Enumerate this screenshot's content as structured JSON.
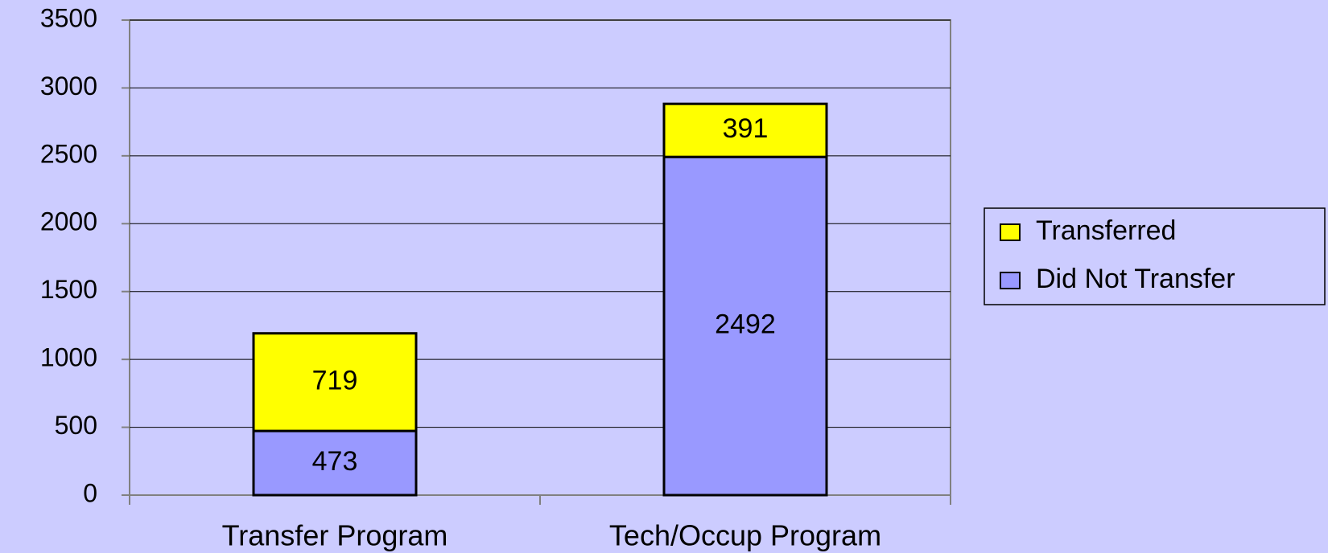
{
  "chart_data": {
    "type": "stacked_bar",
    "categories": [
      "Transfer Program",
      "Tech/Occup Program"
    ],
    "series": [
      {
        "name": "Did Not Transfer",
        "color": "#9999ff",
        "values": [
          473,
          2492
        ]
      },
      {
        "name": "Transferred",
        "color": "#ffff00",
        "values": [
          719,
          391
        ]
      }
    ],
    "ylim": [
      0,
      3500
    ],
    "yticks": [
      0,
      500,
      1000,
      1500,
      2000,
      2500,
      3000,
      3500
    ],
    "grid": true,
    "legend": "right"
  }
}
